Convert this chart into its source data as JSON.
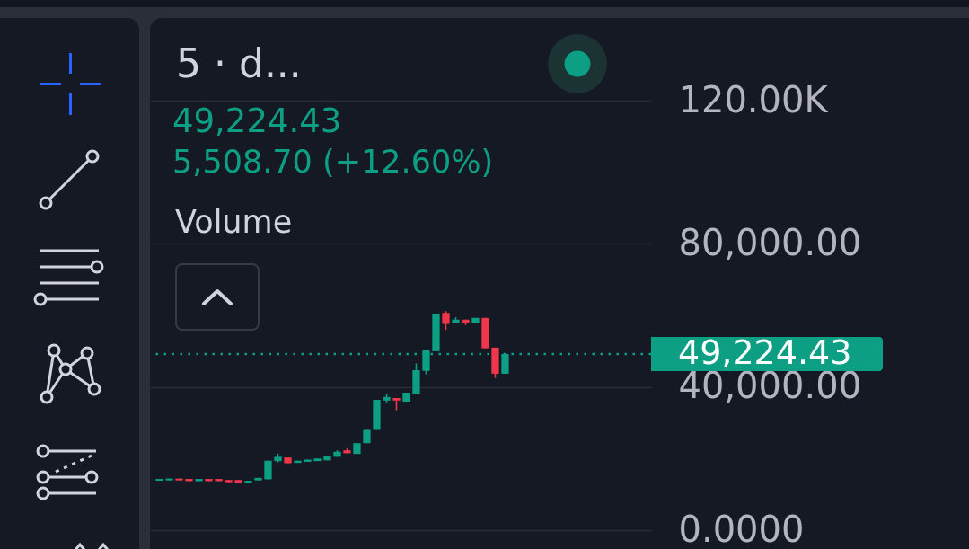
{
  "chart_data": {
    "type": "candlestick",
    "title": "5 · d...",
    "categories": [
      null,
      null,
      null,
      null,
      null,
      null,
      null,
      null,
      null,
      null,
      null,
      null,
      null,
      null,
      null,
      null,
      null,
      null,
      null,
      null,
      null,
      null,
      null,
      null,
      null,
      null,
      null,
      null,
      null,
      null,
      null,
      null,
      null,
      null,
      null,
      null
    ],
    "ohlc": [
      [
        13800,
        14300,
        13800,
        14300
      ],
      [
        13900,
        14400,
        13900,
        14400
      ],
      [
        14400,
        14400,
        13900,
        13900
      ],
      [
        14300,
        14300,
        13700,
        13700
      ],
      [
        13700,
        14300,
        13700,
        14300
      ],
      [
        14300,
        14300,
        13700,
        13700
      ],
      [
        14300,
        14300,
        13700,
        13700
      ],
      [
        14000,
        14000,
        13400,
        13400
      ],
      [
        14000,
        14000,
        13300,
        13300
      ],
      [
        13200,
        13800,
        13200,
        13800
      ],
      [
        13900,
        14600,
        13900,
        14600
      ],
      [
        14200,
        19400,
        14200,
        19400
      ],
      [
        19300,
        21400,
        18900,
        20500
      ],
      [
        20300,
        20300,
        18700,
        18700
      ],
      [
        18800,
        19400,
        18800,
        19400
      ],
      [
        19100,
        19700,
        19100,
        19700
      ],
      [
        19300,
        20000,
        19300,
        20000
      ],
      [
        19500,
        20600,
        19500,
        20600
      ],
      [
        20500,
        22300,
        20500,
        21900
      ],
      [
        22300,
        22800,
        21500,
        21500
      ],
      [
        21300,
        24300,
        21300,
        24300
      ],
      [
        24300,
        28000,
        24300,
        28000
      ],
      [
        28000,
        36400,
        28000,
        36400
      ],
      [
        36200,
        38100,
        35700,
        37200
      ],
      [
        36900,
        36900,
        33500,
        36200
      ],
      [
        35900,
        38400,
        35900,
        38400
      ],
      [
        38100,
        46600,
        38100,
        44700
      ],
      [
        44500,
        50300,
        43500,
        50300
      ],
      [
        50000,
        60500,
        50000,
        60500
      ],
      [
        60700,
        61200,
        55900,
        57600
      ],
      [
        57800,
        59500,
        57800,
        58800
      ],
      [
        58800,
        58800,
        57300,
        58000
      ],
      [
        57800,
        59300,
        57800,
        59300
      ],
      [
        59300,
        59300,
        50800,
        50800
      ],
      [
        51000,
        51000,
        42500,
        43700
      ],
      [
        43700,
        49224.43,
        43700,
        49224.43
      ]
    ],
    "colors": [
      "#0c9f84",
      "#0c9f84",
      "#f0364a",
      "#f0364a",
      "#0c9f84",
      "#f0364a",
      "#f0364a",
      "#f0364a",
      "#f0364a",
      "#0c9f84",
      "#0c9f84",
      "#0c9f84",
      "#0c9f84",
      "#f0364a",
      "#0c9f84",
      "#0c9f84",
      "#0c9f84",
      "#0c9f84",
      "#0c9f84",
      "#f0364a",
      "#0c9f84",
      "#0c9f84",
      "#0c9f84",
      "#0c9f84",
      "#f0364a",
      "#0c9f84",
      "#0c9f84",
      "#0c9f84",
      "#0c9f84",
      "#f0364a",
      "#0c9f84",
      "#f0364a",
      "#0c9f84",
      "#f0364a",
      "#f0364a",
      "#0c9f84"
    ],
    "ylim": [
      0,
      120000
    ],
    "yticks": [
      {
        "value": 0,
        "label": "0.0000"
      },
      {
        "value": 40000,
        "label": "40,000.00"
      },
      {
        "value": 80000,
        "label": "80,000.00"
      },
      {
        "value": 120000,
        "label": "120.00K"
      }
    ],
    "grid": "y",
    "tick_labels": "y",
    "ref_lines": [
      {
        "axis": "y",
        "value": 49224.43,
        "label": "49,224.43",
        "color": "#0c9f84",
        "line_style": "dotted"
      }
    ],
    "annotations": [
      "49,224.43",
      "5,508.70 (+12.60%)",
      "Volume"
    ]
  }
}
